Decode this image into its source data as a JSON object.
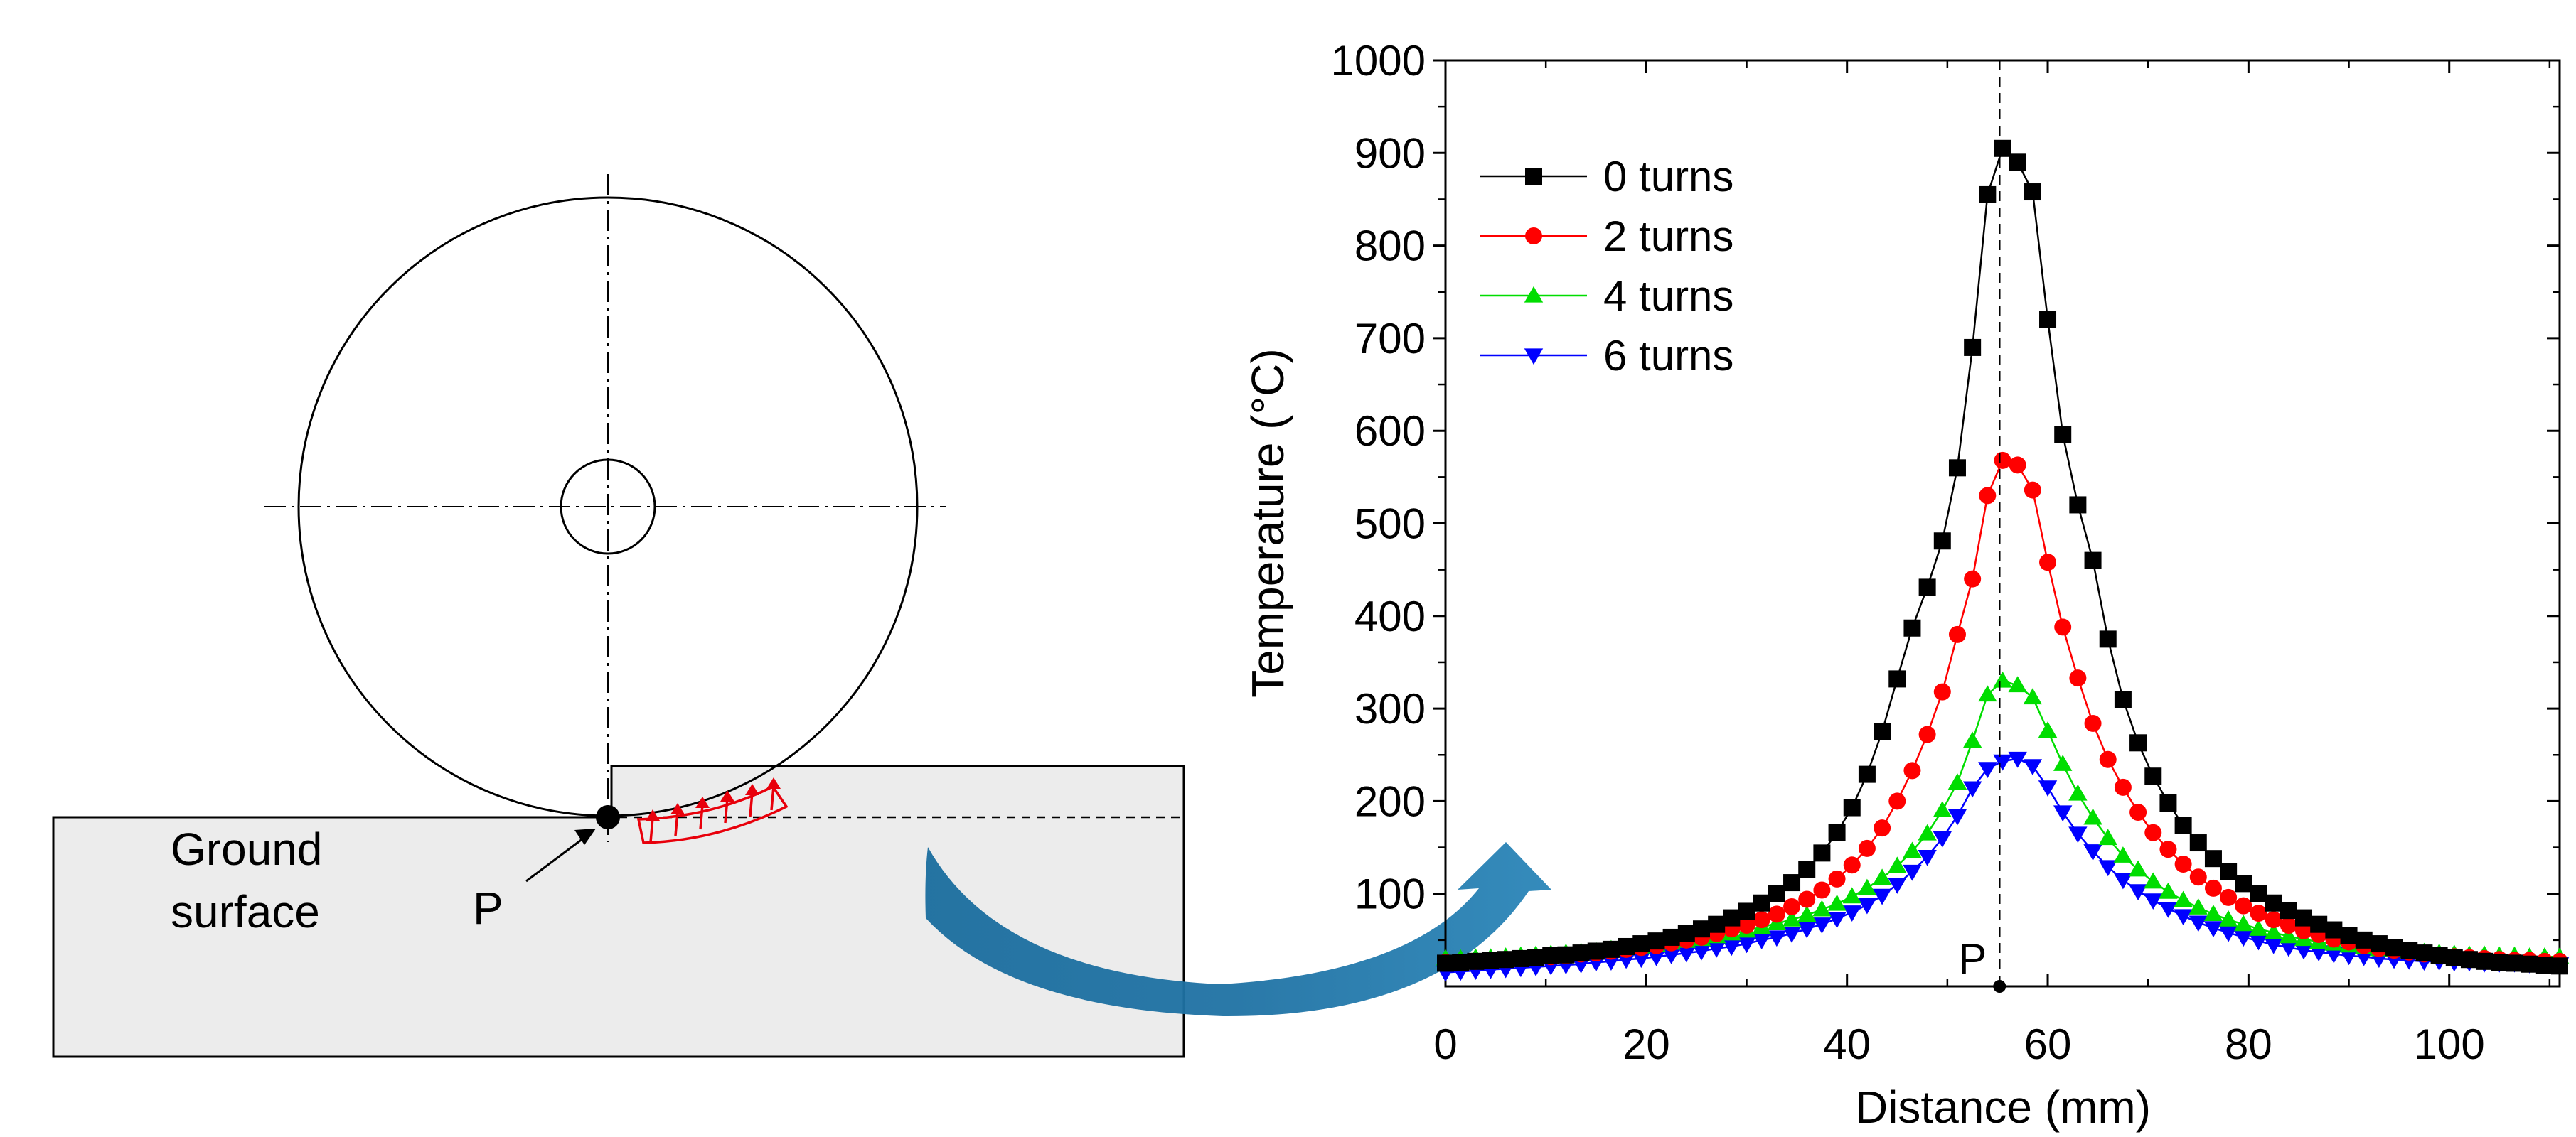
{
  "diagram": {
    "ground_label_line1": "Ground",
    "ground_label_line2": "surface",
    "point_label": "P",
    "colors": {
      "ground_fill": "#ececec",
      "heat_arrows": "#e8000b",
      "transfer_arrow": "#1f72a4",
      "line": "#000000"
    }
  },
  "chart_data": {
    "type": "line",
    "title": "",
    "xlabel": "Distance (mm)",
    "ylabel": "Temperature (°C)",
    "xlim": [
      0,
      111
    ],
    "ylim": [
      0,
      1000
    ],
    "xticks": [
      0,
      20,
      40,
      60,
      80,
      100
    ],
    "yticks": [
      100,
      200,
      300,
      400,
      500,
      600,
      700,
      800,
      900,
      1000
    ],
    "marker_line_x": 55.2,
    "marker_label": "P",
    "legend_position": "top-left",
    "x": [
      0,
      1.5,
      3,
      4.5,
      6,
      7.5,
      9,
      10.5,
      12,
      13.5,
      15,
      16.5,
      18,
      19.5,
      21,
      22.5,
      24,
      25.5,
      27,
      28.5,
      30,
      31.5,
      33,
      34.5,
      36,
      37.5,
      39,
      40.5,
      42,
      43.5,
      45,
      46.5,
      48,
      49.5,
      51,
      52.5,
      54,
      55.5,
      57,
      58.5,
      60,
      61.5,
      63,
      64.5,
      66,
      67.5,
      69,
      70.5,
      72,
      73.5,
      75,
      76.5,
      78,
      79.5,
      81,
      82.5,
      84,
      85.5,
      87,
      88.5,
      90,
      91.5,
      93,
      94.5,
      96,
      97.5,
      99,
      100.5,
      102,
      103.5,
      105,
      106.5,
      108,
      109.5,
      111
    ],
    "series": [
      {
        "name": "0 turns",
        "color": "#000000",
        "marker": "square",
        "values": [
          25,
          26,
          27,
          28,
          29,
          30,
          31,
          33,
          34,
          36,
          38,
          40,
          43,
          46,
          49,
          53,
          57,
          62,
          67,
          74,
          81,
          90,
          100,
          112,
          126,
          144,
          166,
          193,
          229,
          275,
          332,
          387,
          431,
          481,
          560,
          690,
          855,
          905,
          890,
          858,
          720,
          596,
          520,
          460,
          375,
          310,
          263,
          227,
          198,
          174,
          155,
          138,
          124,
          111,
          100,
          90,
          82,
          74,
          67,
          61,
          55,
          50,
          46,
          42,
          39,
          36,
          33,
          31,
          29,
          27,
          26,
          25,
          24,
          23,
          22
        ]
      },
      {
        "name": "2 turns",
        "color": "#ff0000",
        "marker": "circle",
        "values": [
          26,
          26,
          27,
          28,
          29,
          30,
          31,
          32,
          33,
          35,
          36,
          38,
          40,
          42,
          44,
          47,
          50,
          53,
          57,
          62,
          66,
          72,
          78,
          86,
          94,
          104,
          116,
          131,
          149,
          171,
          200,
          233,
          272,
          318,
          380,
          440,
          530,
          568,
          563,
          536,
          458,
          388,
          333,
          284,
          245,
          215,
          188,
          166,
          148,
          132,
          118,
          106,
          96,
          87,
          79,
          72,
          66,
          60,
          56,
          51,
          48,
          44,
          41,
          39,
          37,
          35,
          33,
          32,
          31,
          30,
          29,
          28,
          28,
          27,
          27
        ]
      },
      {
        "name": "4 turns",
        "color": "#00dd00",
        "marker": "triangle-up",
        "values": [
          30,
          30,
          31,
          31,
          32,
          33,
          34,
          35,
          36,
          37,
          38,
          40,
          41,
          43,
          45,
          47,
          49,
          51,
          54,
          57,
          60,
          64,
          68,
          72,
          77,
          83,
          89,
          97,
          106,
          117,
          130,
          146,
          165,
          190,
          220,
          265,
          315,
          330,
          325,
          312,
          276,
          240,
          208,
          182,
          160,
          141,
          126,
          113,
          102,
          93,
          85,
          78,
          72,
          67,
          62,
          58,
          54,
          51,
          48,
          46,
          44,
          42,
          40,
          39,
          38,
          37,
          36,
          35,
          34,
          34,
          33,
          33,
          32,
          32,
          32
        ]
      },
      {
        "name": "6 turns",
        "color": "#0000ff",
        "marker": "triangle-down",
        "values": [
          15,
          16,
          17,
          18,
          19,
          20,
          21,
          22,
          23,
          24,
          26,
          27,
          29,
          30,
          32,
          34,
          36,
          38,
          41,
          43,
          46,
          50,
          53,
          57,
          62,
          67,
          73,
          80,
          88,
          98,
          110,
          124,
          140,
          160,
          184,
          214,
          235,
          243,
          246,
          238,
          215,
          188,
          165,
          146,
          129,
          115,
          103,
          93,
          84,
          76,
          69,
          63,
          58,
          53,
          49,
          45,
          42,
          39,
          37,
          35,
          33,
          32,
          30,
          29,
          28,
          27,
          27,
          26,
          26,
          25,
          25,
          25,
          24,
          24,
          24
        ]
      }
    ]
  }
}
